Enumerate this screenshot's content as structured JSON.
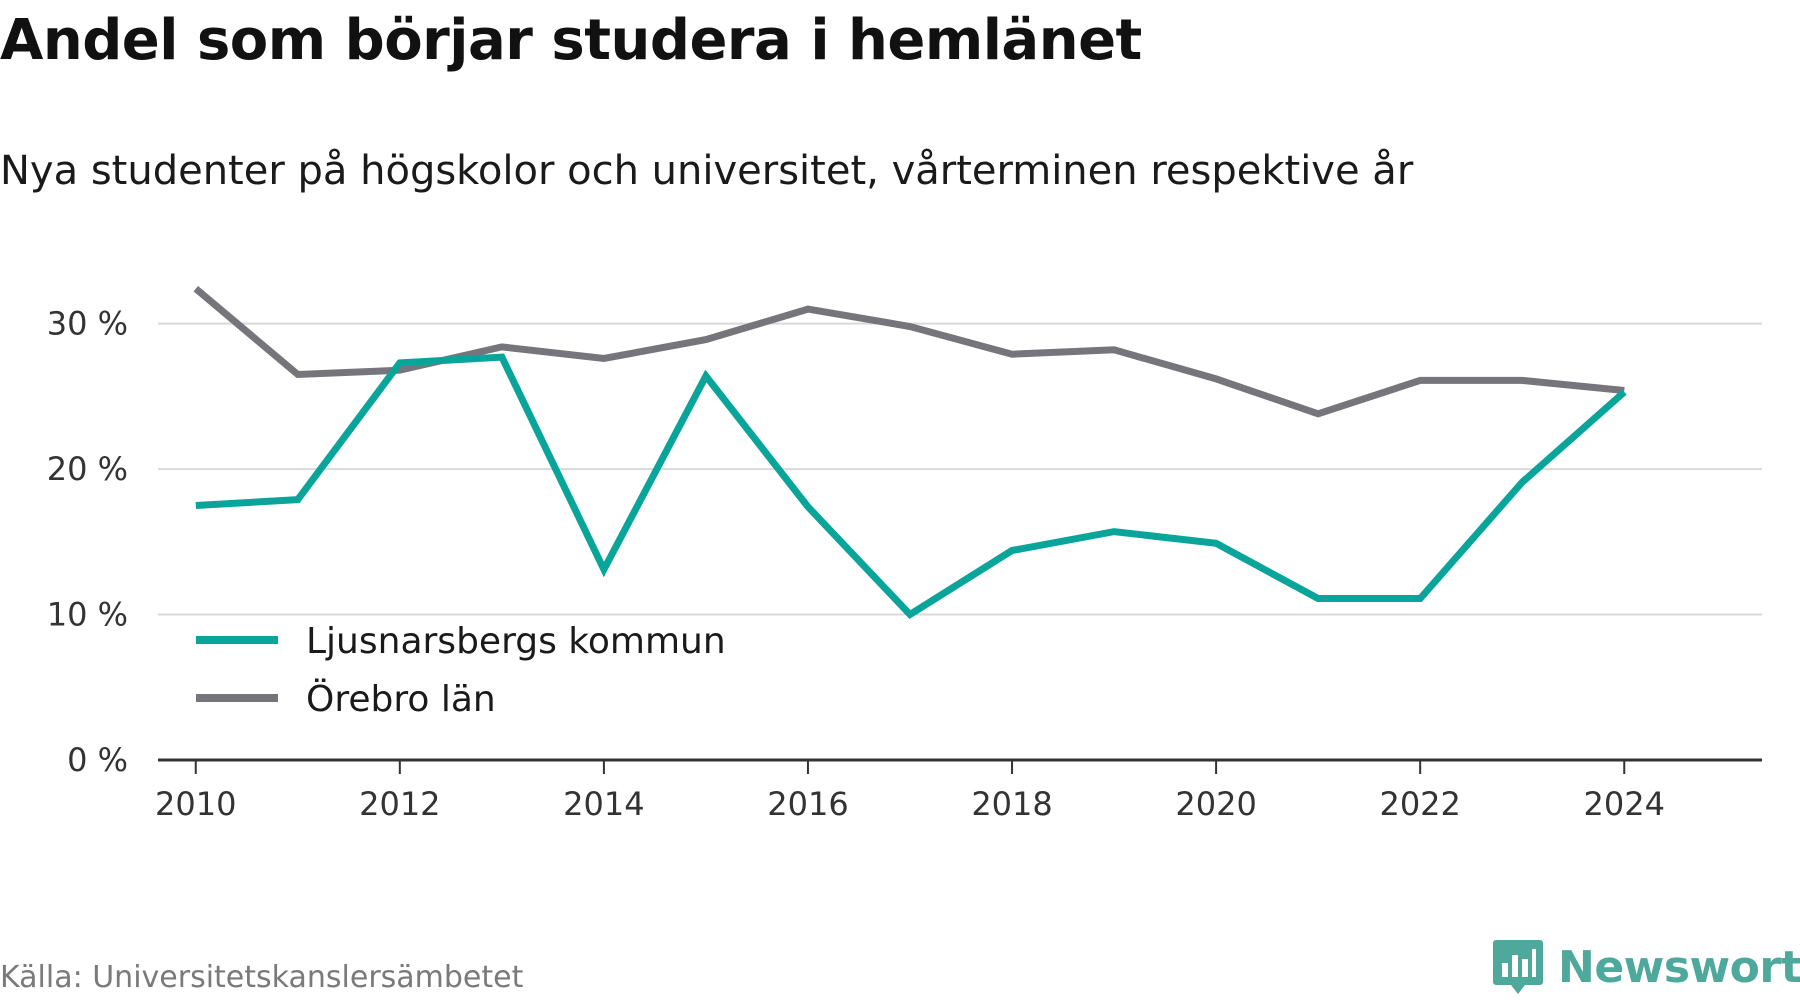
{
  "header": {
    "title": "Andel som börjar studera i hemlänet",
    "subtitle": "Nya studenter på högskolor och universitet, vårterminen respektive år"
  },
  "footer": {
    "source": "Källa: Universitetskanslersämbetet",
    "brand": "Newsworthy",
    "brand_icon": "newsworthy-logo-icon"
  },
  "colors": {
    "series_1": "#0aa59a",
    "series_2": "#76757c",
    "grid": "#d9d9d9",
    "axis": "#333333",
    "brand": "#4fa89c"
  },
  "chart_data": {
    "type": "line",
    "title": "Andel som börjar studera i hemlänet",
    "subtitle": "Nya studenter på högskolor och universitet, vårterminen respektive år",
    "xlabel": "",
    "ylabel": "",
    "x": [
      2010,
      2011,
      2012,
      2013,
      2014,
      2015,
      2016,
      2017,
      2018,
      2019,
      2020,
      2021,
      2022,
      2023,
      2024
    ],
    "x_ticks": [
      "2010",
      "2012",
      "2014",
      "2016",
      "2018",
      "2020",
      "2022",
      "2024"
    ],
    "y_ticks": [
      "0 %",
      "10 %",
      "20 %",
      "30 %"
    ],
    "y_tick_values": [
      0,
      10,
      20,
      30
    ],
    "xlim": [
      2009.63,
      2025.35
    ],
    "ylim": [
      0,
      33
    ],
    "grid": true,
    "legend_position": "bottom-left",
    "series": [
      {
        "name": "Ljusnarsbergs kommun",
        "color": "#0aa59a",
        "values": [
          17.5,
          17.9,
          27.3,
          27.7,
          13.1,
          26.4,
          17.4,
          10.0,
          14.4,
          15.7,
          14.9,
          11.1,
          11.1,
          19.1,
          25.3
        ]
      },
      {
        "name": "Örebro län",
        "color": "#76757c",
        "values": [
          32.4,
          26.5,
          26.8,
          28.4,
          27.6,
          28.9,
          31.0,
          29.8,
          27.9,
          28.2,
          26.2,
          23.8,
          26.1,
          26.1,
          25.4
        ]
      }
    ]
  }
}
